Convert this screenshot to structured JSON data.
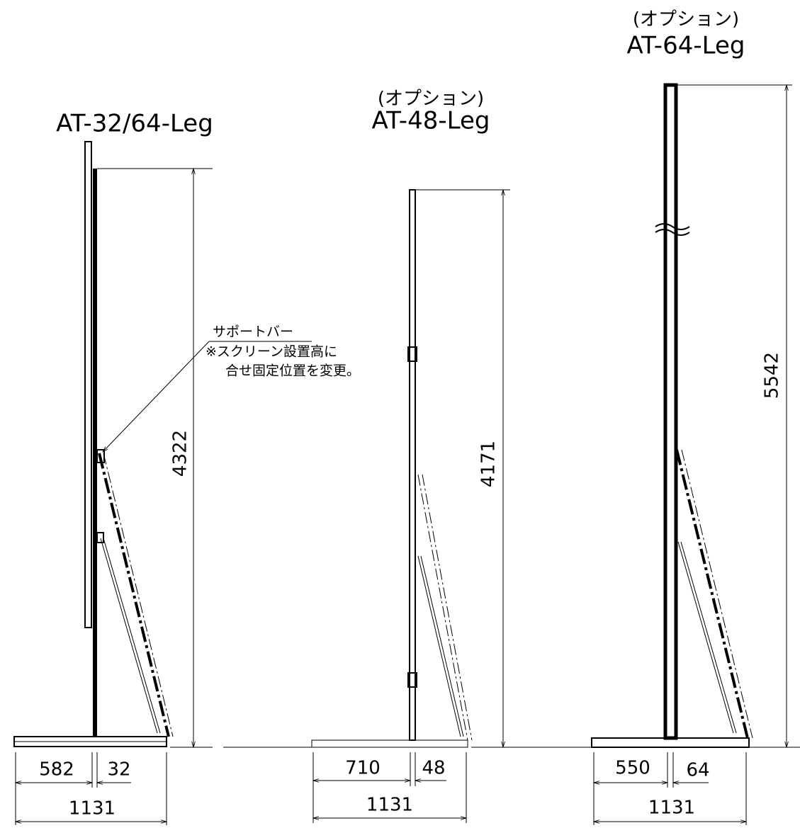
{
  "stands": [
    {
      "name": "AT-32/64-Leg",
      "height": "4322",
      "dims": [
        "582",
        "32",
        "1131"
      ]
    },
    {
      "option": "(オプション)",
      "name": "AT-48-Leg",
      "height": "4171",
      "dims": [
        "710",
        "48",
        "1131"
      ]
    },
    {
      "option": "(オプション)",
      "name": "AT-64-Leg",
      "height": "5542",
      "dims": [
        "550",
        "64",
        "1131"
      ]
    }
  ],
  "note": {
    "title": "サポートバー",
    "lines": [
      "※スクリーン設置高に",
      "合せ固定位置を変更。"
    ]
  }
}
